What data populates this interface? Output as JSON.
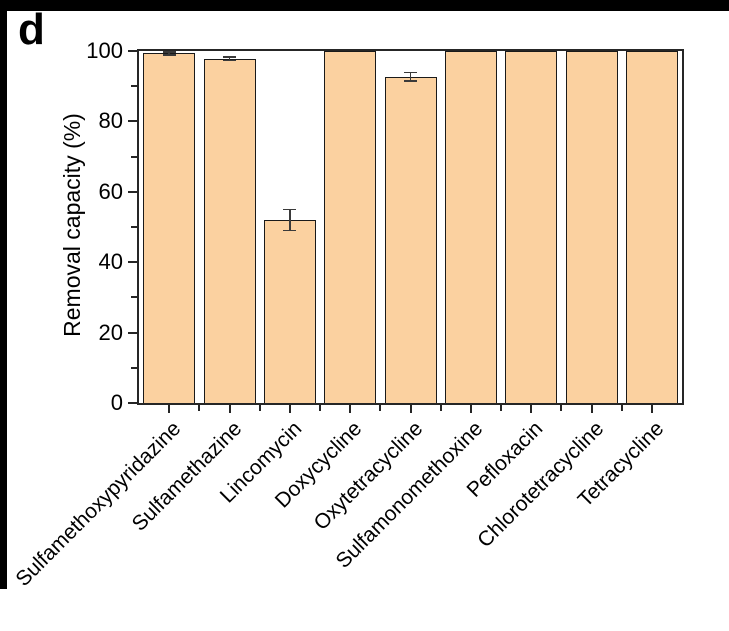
{
  "panel_label": "d",
  "chart_data": {
    "type": "bar",
    "title": "",
    "xlabel": "",
    "ylabel": "Removal capacity (%)",
    "ylim": [
      0,
      100
    ],
    "yticks": [
      0,
      20,
      40,
      60,
      80,
      100
    ],
    "y_minor_ticks": [
      10,
      30,
      50,
      70,
      90
    ],
    "grid": false,
    "legend_position": "none",
    "categories": [
      "Sulfamethoxypyridazine",
      "Sulfamethazine",
      "Lincomycin",
      "Doxycycline",
      "Oxytetracycline",
      "Sulfamonomethoxine",
      "Pefloxacin",
      "Chlorotetracycline",
      "Tetracycline"
    ],
    "values": [
      99.3,
      97.8,
      52,
      100,
      92.7,
      100,
      100,
      100,
      100
    ],
    "errors": [
      0.4,
      0.5,
      3,
      0,
      1.2,
      0,
      0,
      0,
      0
    ],
    "colors": {
      "bar_fill": "#FBD1A0",
      "bar_edge": "#1A1A1A",
      "axis": "#262626",
      "error_bar": "#3A3A3A",
      "text": "#000000",
      "background": "#FFFFFF",
      "outer_border": "#000000"
    }
  }
}
